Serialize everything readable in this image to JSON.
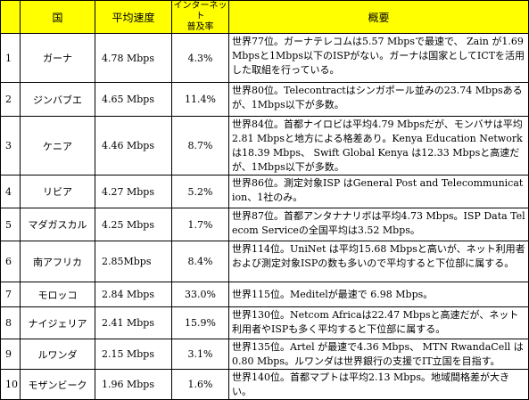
{
  "headers": {
    "rank": "",
    "country": "国",
    "speed": "平均速度",
    "penetration_line1": "インターネット",
    "penetration_line2": "普及率",
    "summary": "概要"
  },
  "rows": [
    {
      "rank": "1",
      "country": "ガーナ",
      "speed": "4.78 Mbps",
      "penetration": "4.3%",
      "summary": "世界77位。ガーナテレコムは5.57 Mbpsで最速で、 Zain が1.69 Mbpsと1Mbps以下のISPがない。ガーナは国家としてICTを活用した取組を行っている。"
    },
    {
      "rank": "2",
      "country": "ジンバブエ",
      "speed": "4.65 Mbps",
      "penetration": "11.4%",
      "summary": "世界80位。Telecontractはシンガポール並みの23.74 Mbpsあるが、1Mbps以下が多数。"
    },
    {
      "rank": "3",
      "country": "ケニア",
      "speed": "4.46 Mbps",
      "penetration": "8.7%",
      "summary": "世界84位。首都ナイロビは平均4.79 Mbpsだが、モンバサは平均2.81 Mbpsと地方による格差あり。Kenya Education Network は18.39 Mbps、 Swift Global Kenya は12.33 Mbpsと高速だが、1Mbps以下が多数。"
    },
    {
      "rank": "4",
      "country": "リビア",
      "speed": "4.27 Mbps",
      "penetration": "5.2%",
      "summary": "世界86位。測定対象ISP はGeneral Post and Telecommunication、1社のみ。"
    },
    {
      "rank": "5",
      "country": "マダガスカル",
      "speed": "4.25 Mbps",
      "penetration": "1.7%",
      "summary": "世界87位。首都アンタナナリボは平均4.73 Mbps。ISP Data Telecom Serviceの全国平均は3.52 Mbps。"
    },
    {
      "rank": "6",
      "country": "南アフリカ",
      "speed": "2.85Mbps",
      "penetration": "8.4%",
      "summary": "世界114位。UniNet は平均15.68 Mbpsと高いが、ネット利用者および測定対象ISPの数も多いので平均すると下位部に属する。"
    },
    {
      "rank": "7",
      "country": "モロッコ",
      "speed": "2.84 Mbps",
      "penetration": "33.0%",
      "summary": "世界115位。Meditelが最速で 6.98 Mbps。"
    },
    {
      "rank": "8",
      "country": "ナイジェリア",
      "speed": "2.41 Mbps",
      "penetration": "15.9%",
      "summary": "世界130位。Netcom Africaは22.47 Mbpsと高速だが、ネット利用者やISPも多く平均すると下位部に属する。"
    },
    {
      "rank": "9",
      "country": "ルワンダ",
      "speed": "2.15 Mbps",
      "penetration": "3.1%",
      "summary": "世界135位。Artel が最速で4.36 Mbps、 MTN RwandaCell は 0.80 Mbps。ルワンダは世界銀行の支援でIT立国を目指す。"
    },
    {
      "rank": "10",
      "country": "モザンビーク",
      "speed": "1.96 Mbps",
      "penetration": "1.6%",
      "summary": "世界140位。首都マプトは平均2.13 Mbps。地域間格差が大きい。"
    }
  ],
  "colors": {
    "header_bg": "#ffff00",
    "border": "#000000"
  }
}
